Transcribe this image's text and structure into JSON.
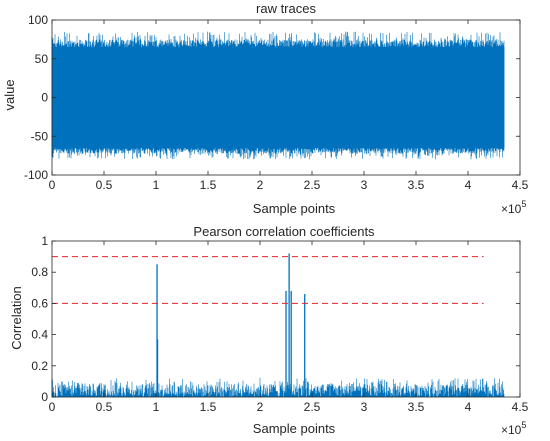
{
  "figure": {
    "colors": {
      "series": "#0072BD",
      "threshold": "#E8232A",
      "axis": "#262626",
      "background": "#FFFFFF"
    }
  },
  "chart_data": [
    {
      "type": "line",
      "title": "raw traces",
      "xlabel": "Sample points",
      "ylabel": "value",
      "xlim": [
        0,
        450000
      ],
      "ylim": [
        -100,
        100
      ],
      "x_exponent_label": "×10",
      "x_exponent": "5",
      "x_ticks": [
        0,
        50000,
        100000,
        150000,
        200000,
        250000,
        300000,
        350000,
        400000,
        450000
      ],
      "x_tick_labels": [
        "0",
        "0.5",
        "1",
        "1.5",
        "2",
        "2.5",
        "3",
        "3.5",
        "4",
        "4.5"
      ],
      "y_ticks": [
        -100,
        -50,
        0,
        50,
        100
      ],
      "y_tick_labels": [
        "-100",
        "-50",
        "0",
        "50",
        "100"
      ],
      "grid": false,
      "series": [
        {
          "x_range": [
            0,
            435000
          ],
          "description_values": {
            "dense_band_upper": 65,
            "dense_band_lower": -65,
            "peak_max": 85,
            "peak_min": -80
          }
        }
      ]
    },
    {
      "type": "line",
      "title": "Pearson correlation coefficients",
      "xlabel": "Sample points",
      "ylabel": "Correlation",
      "xlim": [
        0,
        450000
      ],
      "ylim": [
        0,
        1
      ],
      "x_exponent_label": "×10",
      "x_exponent": "5",
      "x_ticks": [
        0,
        50000,
        100000,
        150000,
        200000,
        250000,
        300000,
        350000,
        400000,
        450000
      ],
      "x_tick_labels": [
        "0",
        "0.5",
        "1",
        "1.5",
        "2",
        "2.5",
        "3",
        "3.5",
        "4",
        "4.5"
      ],
      "y_ticks": [
        0,
        0.2,
        0.4,
        0.6,
        0.8,
        1
      ],
      "y_tick_labels": [
        "0",
        "0.2",
        "0.4",
        "0.6",
        "0.8",
        "1"
      ],
      "grid": false,
      "thresholds": [
        0.9,
        0.6
      ],
      "threshold_x_range": [
        0,
        415000
      ],
      "series": [
        {
          "x_range": [
            0,
            435000
          ],
          "noise_floor_max": 0.12,
          "spikes": [
            {
              "x": 101000,
              "y": 0.85
            },
            {
              "x": 101500,
              "y": 0.37
            },
            {
              "x": 225000,
              "y": 0.68
            },
            {
              "x": 228000,
              "y": 0.92
            },
            {
              "x": 230000,
              "y": 0.68
            },
            {
              "x": 243000,
              "y": 0.66
            }
          ]
        }
      ]
    }
  ]
}
